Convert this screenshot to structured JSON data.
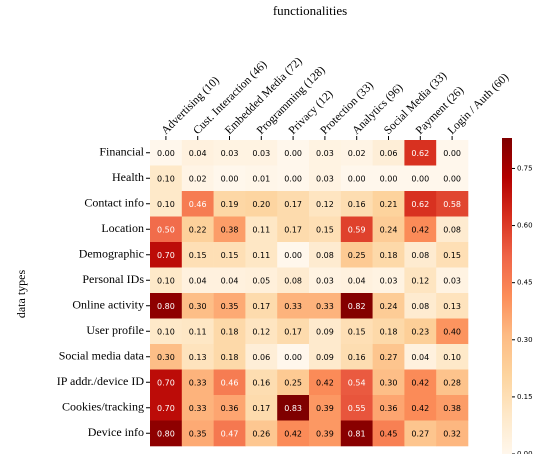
{
  "chart_data": {
    "type": "heatmap",
    "title": "functionalities",
    "y_label": "data types",
    "x_categories": [
      "Advertising (10)",
      "Cust. Interaction (46)",
      "Embedded Media (72)",
      "Programming (128)",
      "Privacy (12)",
      "Protection (33)",
      "Analytics (96)",
      "Social Media (33)",
      "Payment (26)",
      "Login / Auth (60)"
    ],
    "y_categories": [
      "Financial",
      "Health",
      "Contact info",
      "Location",
      "Demographic",
      "Personal IDs",
      "Online activity",
      "User profile",
      "Social media data",
      "IP addr./device ID",
      "Cookies/tracking",
      "Device info"
    ],
    "values": [
      [
        0.0,
        0.04,
        0.03,
        0.03,
        0.0,
        0.03,
        0.02,
        0.06,
        0.62,
        0.0
      ],
      [
        0.1,
        0.02,
        0.0,
        0.01,
        0.0,
        0.03,
        0.0,
        0.0,
        0.0,
        0.0
      ],
      [
        0.1,
        0.46,
        0.19,
        0.2,
        0.17,
        0.12,
        0.16,
        0.21,
        0.62,
        0.58
      ],
      [
        0.5,
        0.22,
        0.38,
        0.11,
        0.17,
        0.15,
        0.59,
        0.24,
        0.42,
        0.08
      ],
      [
        0.7,
        0.15,
        0.15,
        0.11,
        0.0,
        0.08,
        0.25,
        0.18,
        0.08,
        0.15
      ],
      [
        0.1,
        0.04,
        0.04,
        0.05,
        0.08,
        0.03,
        0.04,
        0.03,
        0.12,
        0.03
      ],
      [
        0.8,
        0.3,
        0.35,
        0.17,
        0.33,
        0.33,
        0.82,
        0.24,
        0.08,
        0.13
      ],
      [
        0.1,
        0.11,
        0.18,
        0.12,
        0.17,
        0.09,
        0.15,
        0.18,
        0.23,
        0.4
      ],
      [
        0.3,
        0.13,
        0.18,
        0.06,
        0.0,
        0.09,
        0.16,
        0.27,
        0.04,
        0.1
      ],
      [
        0.7,
        0.33,
        0.46,
        0.16,
        0.25,
        0.42,
        0.54,
        0.3,
        0.42,
        0.28
      ],
      [
        0.7,
        0.33,
        0.36,
        0.17,
        0.83,
        0.39,
        0.55,
        0.36,
        0.42,
        0.38
      ],
      [
        0.8,
        0.35,
        0.47,
        0.26,
        0.42,
        0.39,
        0.81,
        0.45,
        0.27,
        0.32
      ]
    ],
    "value_labels": [
      [
        "0.00",
        "0.04",
        "0.03",
        "0.03",
        "0.00",
        "0.03",
        "0.02",
        "0.06",
        "0.62",
        "0.00"
      ],
      [
        "0.10",
        "0.02",
        "0.00",
        "0.01",
        "0.00",
        "0.03",
        "0.00",
        "0.00",
        "0.00",
        "0.00"
      ],
      [
        "0.10",
        "0.46",
        "0.19",
        "0.20",
        "0.17",
        "0.12",
        "0.16",
        "0.21",
        "0.62",
        "0.58"
      ],
      [
        "0.50",
        "0.22",
        "0.38",
        "0.11",
        "0.17",
        "0.15",
        "0.59",
        "0.24",
        "0.42",
        "0.08"
      ],
      [
        "0.70",
        "0.15",
        "0.15",
        "0.11",
        "0.00",
        "0.08",
        "0.25",
        "0.18",
        "0.08",
        "0.15"
      ],
      [
        "0.10",
        "0.04",
        "0.04",
        "0.05",
        "0.08",
        "0.03",
        "0.04",
        "0.03",
        "0.12",
        "0.03"
      ],
      [
        "0.80",
        "0.30",
        "0.35",
        "0.17",
        "0.33",
        "0.33",
        "0.82",
        "0.24",
        "0.08",
        "0.13"
      ],
      [
        "0.10",
        "0.11",
        "0.18",
        "0.12",
        "0.17",
        "0.09",
        "0.15",
        "0.18",
        "0.23",
        "0.40"
      ],
      [
        "0.30",
        "0.13",
        "0.18",
        "0.06",
        "0.00",
        "0.09",
        "0.16",
        "0.27",
        "0.04",
        "0.10"
      ],
      [
        "0.70",
        "0.33",
        "0.46",
        "0.16",
        "0.25",
        "0.42",
        "0.54",
        "0.30",
        "0.42",
        "0.28"
      ],
      [
        "0.70",
        "0.33",
        "0.36",
        "0.17",
        "0.83",
        "0.39",
        "0.55",
        "0.36",
        "0.42",
        "0.38"
      ],
      [
        "0.80",
        "0.35",
        "0.47",
        "0.26",
        "0.42",
        "0.39",
        "0.81",
        "0.45",
        "0.27",
        "0.32"
      ]
    ],
    "colormap": [
      "#fff7ec",
      "#fee8c8",
      "#fdd49e",
      "#fdbb84",
      "#fc8d59",
      "#ef6548",
      "#d7301f",
      "#b30000",
      "#7f0000"
    ],
    "zlim": [
      0,
      0.83
    ],
    "zticks": [
      {
        "value": 0,
        "label": "0.00"
      },
      {
        "value": 0.15,
        "label": "0.15"
      },
      {
        "value": 0.3,
        "label": "0.30"
      },
      {
        "value": 0.45,
        "label": "0.45"
      },
      {
        "value": 0.6,
        "label": "0.60"
      },
      {
        "value": 0.75,
        "label": "0.75"
      }
    ]
  }
}
